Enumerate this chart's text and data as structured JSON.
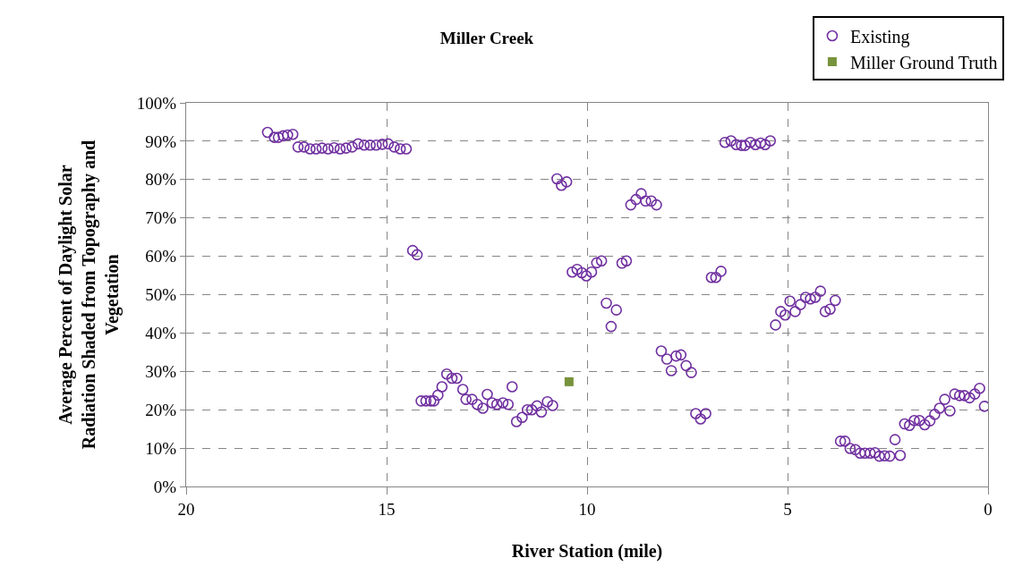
{
  "chart_data": {
    "type": "scatter",
    "title": "Miller Creek",
    "xlabel": "River Station (mile)",
    "ylabel": "Average Percent of Daylight Solar Radiation Shaded from Topography and Vegetation",
    "xlim": [
      20,
      0
    ],
    "xticks": [
      20,
      15,
      10,
      5,
      0
    ],
    "ylim": [
      0,
      100
    ],
    "yticks": [
      {
        "value": 0,
        "label": "0%"
      },
      {
        "value": 10,
        "label": "10%"
      },
      {
        "value": 20,
        "label": "20%"
      },
      {
        "value": 30,
        "label": "30%"
      },
      {
        "value": 40,
        "label": "40%"
      },
      {
        "value": 50,
        "label": "50%"
      },
      {
        "value": 60,
        "label": "60%"
      },
      {
        "value": 70,
        "label": "70%"
      },
      {
        "value": 80,
        "label": "80%"
      },
      {
        "value": 90,
        "label": "90%"
      },
      {
        "value": 100,
        "label": "100%"
      }
    ],
    "grid": true,
    "legend": "top right",
    "series": [
      {
        "name": "Existing",
        "color": "#7030a0",
        "marker": "circle",
        "x": [
          17.97,
          17.8,
          17.7,
          17.58,
          17.47,
          17.34,
          17.21,
          17.06,
          16.91,
          16.76,
          16.61,
          16.46,
          16.31,
          16.16,
          16.01,
          15.86,
          15.71,
          15.56,
          15.41,
          15.26,
          15.11,
          14.96,
          14.81,
          14.66,
          14.51,
          14.35,
          14.24,
          14.14,
          14.02,
          13.9,
          13.82,
          13.72,
          13.62,
          13.5,
          13.37,
          13.25,
          13.1,
          13.02,
          12.87,
          12.74,
          12.6,
          12.49,
          12.37,
          12.25,
          12.1,
          11.97,
          11.87,
          11.76,
          11.62,
          11.49,
          11.38,
          11.25,
          11.14,
          10.99,
          10.86,
          10.75,
          10.64,
          10.51,
          10.37,
          10.25,
          10.13,
          10.02,
          9.89,
          9.76,
          9.64,
          9.52,
          9.4,
          9.27,
          9.13,
          9.02,
          8.91,
          8.78,
          8.65,
          8.54,
          8.4,
          8.27,
          8.15,
          8.01,
          7.9,
          7.78,
          7.66,
          7.53,
          7.4,
          7.29,
          7.17,
          7.04,
          6.9,
          6.79,
          6.66,
          6.56,
          6.41,
          6.28,
          6.15,
          6.06,
          5.93,
          5.8,
          5.67,
          5.56,
          5.43,
          5.3,
          5.17,
          5.06,
          4.94,
          4.81,
          4.68,
          4.55,
          4.43,
          4.31,
          4.18,
          4.06,
          3.94,
          3.81,
          3.68,
          3.57,
          3.44,
          3.31,
          3.19,
          3.07,
          2.94,
          2.82,
          2.71,
          2.58,
          2.45,
          2.32,
          2.19,
          2.08,
          1.96,
          1.84,
          1.71,
          1.58,
          1.45,
          1.33,
          1.21,
          1.08,
          0.95,
          0.83,
          0.71,
          0.59,
          0.46,
          0.33,
          0.21,
          0.09
        ],
        "values": [
          92.3,
          91,
          91,
          91.4,
          91.6,
          91.8,
          88.5,
          88.5,
          88,
          88,
          88.2,
          88,
          88.3,
          88,
          88.2,
          88.5,
          89.3,
          89,
          89,
          89,
          89.2,
          89.3,
          88.5,
          88,
          88,
          61.5,
          60.4,
          22.3,
          22.3,
          22.3,
          22.3,
          23.8,
          26,
          29.3,
          28.2,
          28.2,
          25.3,
          22.7,
          22.7,
          21.4,
          20.4,
          24,
          21.8,
          21.4,
          21.8,
          21.4,
          26,
          16.9,
          18,
          20,
          20,
          21,
          19.4,
          22.1,
          21.1,
          80.2,
          78.5,
          79.4,
          55.9,
          56.6,
          55.7,
          54.9,
          55.9,
          58.3,
          58.8,
          47.8,
          41.7,
          46,
          58.2,
          58.8,
          73.4,
          74.8,
          76.3,
          74.4,
          74.4,
          73.4,
          35.3,
          33.2,
          30.2,
          34,
          34.3,
          31.5,
          29.7,
          19,
          17.6,
          19,
          54.5,
          54.5,
          56.1,
          89.7,
          90.1,
          89.1,
          88.9,
          88.9,
          89.7,
          89.1,
          89.5,
          89.1,
          90.1,
          42.1,
          45.6,
          44.7,
          48.3,
          45.6,
          47.4,
          49.3,
          48.9,
          49.3,
          50.9,
          45.6,
          46.2,
          48.5,
          11.8,
          11.8,
          9.9,
          9.6,
          8.7,
          8.7,
          8.7,
          8.8,
          7.9,
          8,
          7.9,
          12.2,
          8.1,
          16.3,
          15.9,
          17.2,
          17.2,
          16.1,
          17.1,
          18.8,
          20.4,
          22.7,
          19.7,
          24.1,
          23.7,
          23.7,
          23.1,
          24.1,
          25.6,
          20.9
        ]
      },
      {
        "name": "Miller Ground Truth",
        "color": "#77933c",
        "marker": "square",
        "x": [
          10.45
        ],
        "values": [
          27.3
        ]
      }
    ]
  }
}
